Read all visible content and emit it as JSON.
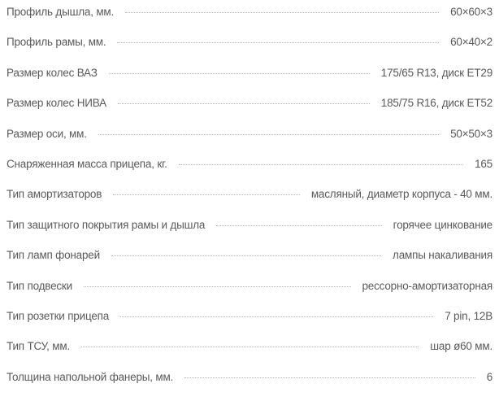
{
  "specs": [
    {
      "label": "Профиль дышла, мм.",
      "value": "60×60×3"
    },
    {
      "label": "Профиль рамы, мм.",
      "value": "60×40×2"
    },
    {
      "label": "Размер колес ВАЗ",
      "value": "175/65 R13, диск ET29"
    },
    {
      "label": "Размер колес НИВА",
      "value": "185/75 R16, диск ET52"
    },
    {
      "label": "Размер оси, мм.",
      "value": "50×50×3"
    },
    {
      "label": "Снаряженная масса прицепа, кг.",
      "value": "165"
    },
    {
      "label": "Тип амортизаторов",
      "value": "масляный, диаметр корпуса - 40 мм."
    },
    {
      "label": "Тип защитного покрытия рамы и дышла",
      "value": "горячее цинкование"
    },
    {
      "label": "Тип ламп фонарей",
      "value": "лампы накаливания"
    },
    {
      "label": "Тип подвески",
      "value": "рессорно-амортизаторная"
    },
    {
      "label": "Тип розетки прицепа",
      "value": "7 pin, 12В"
    },
    {
      "label": "Тип ТСУ, мм.",
      "value": "шар ø60 мм."
    },
    {
      "label": "Толщина напольной фанеры, мм.",
      "value": "6"
    }
  ]
}
